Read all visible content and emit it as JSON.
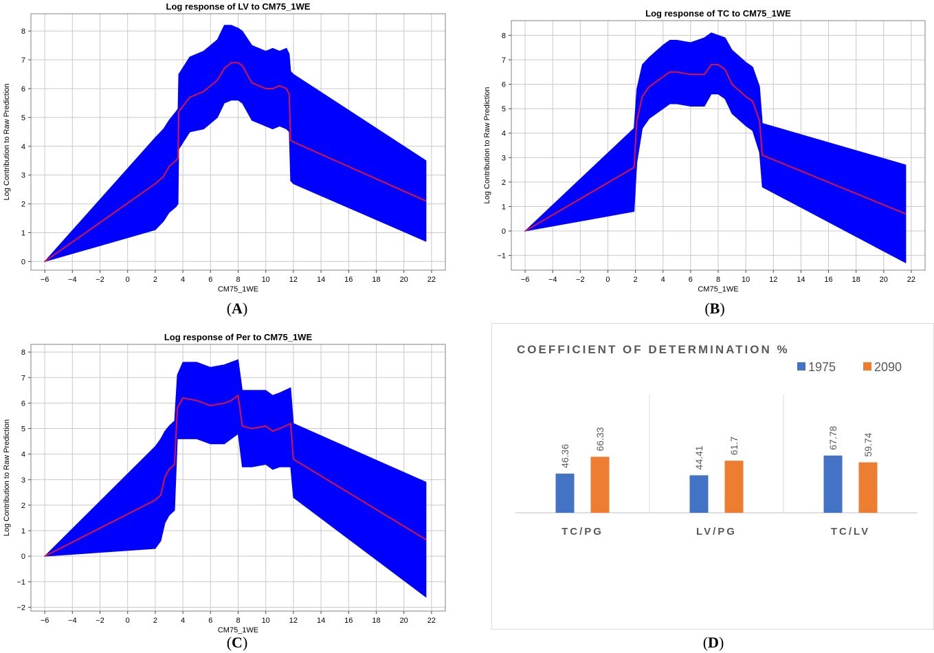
{
  "captions": [
    "A",
    "B",
    "C",
    "D"
  ],
  "chart_data": [
    {
      "type": "area",
      "title": "Log response of LV to CM75_1WE",
      "xlabel": "CM75_1WE",
      "ylabel": "Log Contribution to Raw Prediction",
      "xlim": [
        -7,
        23
      ],
      "ylim": [
        -0.3,
        8.6
      ],
      "xticks": [
        -6,
        -4,
        -2,
        0,
        2,
        4,
        6,
        8,
        10,
        12,
        14,
        16,
        18,
        20,
        22
      ],
      "yticks": [
        0,
        1,
        2,
        3,
        4,
        5,
        6,
        7,
        8
      ],
      "grid": true,
      "x": [
        -6,
        2,
        2.6,
        3.0,
        3.5,
        3.65,
        3.7,
        4.5,
        5.5,
        6.5,
        7.0,
        7.5,
        8.0,
        8.3,
        9.0,
        10.0,
        10.5,
        11.0,
        11.5,
        11.7,
        11.8,
        12.0,
        21.6
      ],
      "mean": [
        0,
        2.7,
        2.95,
        3.3,
        3.5,
        3.6,
        5.2,
        5.7,
        5.9,
        6.3,
        6.7,
        6.9,
        6.9,
        6.8,
        6.2,
        6.0,
        6.0,
        6.1,
        6.0,
        5.8,
        4.2,
        4.15,
        2.1
      ],
      "upper": [
        0,
        4.3,
        4.6,
        4.9,
        5.2,
        5.3,
        6.5,
        7.1,
        7.3,
        7.7,
        8.2,
        8.2,
        8.1,
        8.0,
        7.5,
        7.3,
        7.4,
        7.3,
        7.4,
        7.2,
        6.6,
        6.5,
        3.5
      ],
      "lower": [
        0,
        1.1,
        1.4,
        1.7,
        1.9,
        2.0,
        3.9,
        4.5,
        4.6,
        5.0,
        5.5,
        5.6,
        5.6,
        5.5,
        4.9,
        4.7,
        4.6,
        4.7,
        4.6,
        4.5,
        2.8,
        2.7,
        0.7
      ],
      "band_color": "#0000ff",
      "line_color": "#dc143c"
    },
    {
      "type": "area",
      "title": "Log response of TC to CM75_1WE",
      "xlabel": "CM75_1WE",
      "ylabel": "Log Contribution to Raw Prediction",
      "xlim": [
        -7,
        23
      ],
      "ylim": [
        -1.6,
        8.6
      ],
      "xticks": [
        -6,
        -4,
        -2,
        0,
        2,
        4,
        6,
        8,
        10,
        12,
        14,
        16,
        18,
        20,
        22
      ],
      "yticks": [
        -1,
        0,
        1,
        2,
        3,
        4,
        5,
        6,
        7,
        8
      ],
      "grid": true,
      "x": [
        -6,
        1.9,
        2.1,
        2.5,
        3.0,
        4.0,
        4.5,
        5.0,
        6.0,
        7.0,
        7.5,
        8.0,
        8.5,
        9.0,
        10.0,
        10.5,
        11.0,
        11.2,
        21.6
      ],
      "mean": [
        0,
        2.6,
        4.5,
        5.5,
        5.9,
        6.3,
        6.5,
        6.5,
        6.4,
        6.4,
        6.8,
        6.8,
        6.6,
        6.0,
        5.5,
        5.3,
        4.5,
        3.1,
        0.7
      ],
      "upper": [
        0,
        4.2,
        5.8,
        6.8,
        7.1,
        7.6,
        7.8,
        7.8,
        7.7,
        7.9,
        8.1,
        8.0,
        7.9,
        7.4,
        6.9,
        6.7,
        5.9,
        4.4,
        2.7
      ],
      "lower": [
        0,
        0.8,
        2.8,
        4.2,
        4.6,
        5.0,
        5.2,
        5.2,
        5.1,
        5.1,
        5.6,
        5.6,
        5.4,
        4.8,
        4.3,
        4.1,
        3.2,
        1.8,
        -1.3
      ],
      "band_color": "#0000ff",
      "line_color": "#dc143c"
    },
    {
      "type": "area",
      "title": "Log response of Per to CM75_1WE",
      "xlabel": "CM75_1WE",
      "ylabel": "Log Contribution to Raw Prediction",
      "xlim": [
        -7,
        23
      ],
      "ylim": [
        -2.15,
        8.3
      ],
      "xticks": [
        -6,
        -4,
        -2,
        0,
        2,
        4,
        6,
        8,
        10,
        12,
        14,
        16,
        18,
        20,
        22
      ],
      "yticks": [
        -2,
        -1,
        0,
        1,
        2,
        3,
        4,
        5,
        6,
        7,
        8
      ],
      "grid": true,
      "x": [
        -6,
        2.0,
        2.4,
        2.7,
        3.0,
        3.4,
        3.6,
        4.0,
        5.0,
        6.0,
        7.0,
        7.5,
        8.0,
        8.3,
        9.0,
        10.0,
        10.5,
        11.0,
        11.8,
        12.0,
        21.6
      ],
      "mean": [
        0,
        2.2,
        2.4,
        3.1,
        3.4,
        3.6,
        5.8,
        6.2,
        6.1,
        5.9,
        6.0,
        6.1,
        6.3,
        5.1,
        5.0,
        5.1,
        4.9,
        5.0,
        5.2,
        3.8,
        0.65
      ],
      "upper": [
        0,
        4.3,
        4.6,
        4.9,
        5.1,
        5.3,
        7.1,
        7.6,
        7.6,
        7.4,
        7.5,
        7.6,
        7.7,
        6.5,
        6.5,
        6.5,
        6.3,
        6.4,
        6.6,
        5.2,
        2.9
      ],
      "lower": [
        0,
        0.3,
        0.6,
        1.3,
        1.6,
        1.8,
        4.6,
        4.6,
        4.6,
        4.4,
        4.4,
        4.6,
        4.8,
        3.5,
        3.5,
        3.6,
        3.4,
        3.5,
        3.5,
        2.3,
        -1.6
      ],
      "band_color": "#0000ff",
      "line_color": "#dc143c"
    },
    {
      "type": "bar",
      "title": "COEFFICIENT OF DETERMINATION %",
      "categories": [
        "TC/PG",
        "LV/PG",
        "TC/LV"
      ],
      "series": [
        {
          "name": "1975",
          "values": [
            46.36,
            44.41,
            67.78
          ],
          "color": "#4472c4"
        },
        {
          "name": "2090",
          "values": [
            66.33,
            61.7,
            59.74
          ],
          "color": "#ed7d31"
        }
      ],
      "value_labels": [
        [
          "46.36",
          "44.41",
          "67.78"
        ],
        [
          "66.33",
          "61.7",
          "59.74"
        ]
      ],
      "ylim": [
        0,
        140
      ],
      "legend": "top-right",
      "grid": false
    }
  ]
}
